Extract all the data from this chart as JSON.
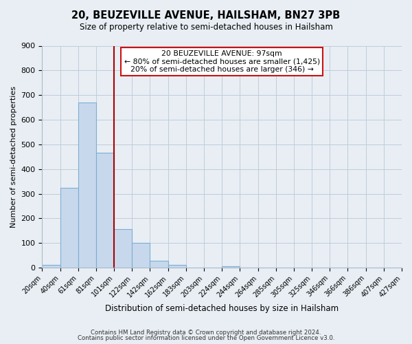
{
  "title": "20, BEUZEVILLE AVENUE, HAILSHAM, BN27 3PB",
  "subtitle": "Size of property relative to semi-detached houses in Hailsham",
  "xlabel": "Distribution of semi-detached houses by size in Hailsham",
  "ylabel": "Number of semi-detached properties",
  "bin_labels": [
    "20sqm",
    "40sqm",
    "61sqm",
    "81sqm",
    "101sqm",
    "122sqm",
    "142sqm",
    "162sqm",
    "183sqm",
    "203sqm",
    "224sqm",
    "244sqm",
    "264sqm",
    "285sqm",
    "305sqm",
    "325sqm",
    "346sqm",
    "366sqm",
    "386sqm",
    "407sqm",
    "427sqm"
  ],
  "bar_values": [
    12,
    325,
    670,
    465,
    155,
    100,
    28,
    10,
    0,
    0,
    5,
    0,
    0,
    0,
    0,
    0,
    0,
    0,
    0,
    0
  ],
  "bar_color": "#c8d8ec",
  "bar_edge_color": "#7bafd4",
  "property_line_color": "#aa0000",
  "ylim": [
    0,
    900
  ],
  "yticks": [
    0,
    100,
    200,
    300,
    400,
    500,
    600,
    700,
    800,
    900
  ],
  "annotation_title": "20 BEUZEVILLE AVENUE: 97sqm",
  "annotation_line1": "← 80% of semi-detached houses are smaller (1,425)",
  "annotation_line2": "20% of semi-detached houses are larger (346) →",
  "footer_line1": "Contains HM Land Registry data © Crown copyright and database right 2024.",
  "footer_line2": "Contains public sector information licensed under the Open Government Licence v3.0.",
  "background_color": "#e8eef4",
  "plot_background_color": "#e8eef4",
  "grid_color": "#c0ccd8"
}
